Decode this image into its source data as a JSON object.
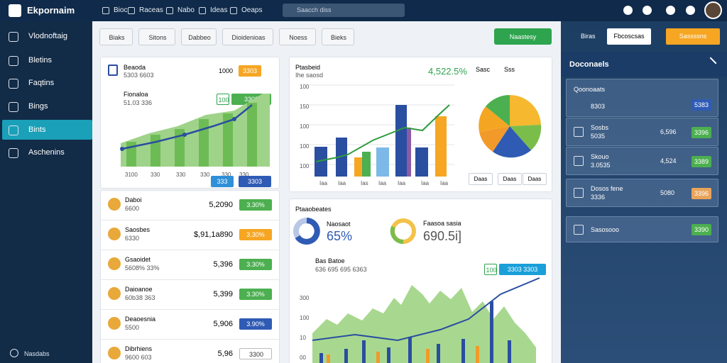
{
  "topbar": {
    "logo": "Ekpornaim",
    "nav": [
      "Bioc",
      "Raceas",
      "Nabo",
      "Ideas",
      "Oeaps"
    ],
    "search": "Saacch diss"
  },
  "sidebar": {
    "items": [
      "Vlodnoftaig",
      "Bletins",
      "Faqtins",
      "Bings",
      "Bints",
      "Aschenins"
    ],
    "footer": "Nasdabs"
  },
  "filters": {
    "buttons": [
      "Biaks",
      "Sitons",
      "Dabbeo",
      "Dioidenioas",
      "Noess",
      "Bieks"
    ],
    "action": "Naastesy"
  },
  "summary_card": {
    "title": "Beaoda",
    "subtitle": "5303 6603",
    "value": "1000",
    "badge": "3303",
    "chart_title": "Fionaloa",
    "chart_subtitle": "51.03 336",
    "chart_badges": [
      "100",
      "3303"
    ],
    "x_labels": [
      "3100",
      "330",
      "330",
      "330",
      "330",
      "330"
    ],
    "footer_badges": [
      "333",
      "3303"
    ]
  },
  "list": {
    "rows": [
      {
        "title": "Daboi",
        "sub": "6600",
        "value": "5,2090",
        "badge": "3.30%"
      },
      {
        "title": "Saosbes",
        "sub": "6330",
        "value": "$,91,1a890",
        "badge": "3.30%"
      },
      {
        "title": "Gsaoidet",
        "sub": "5608% 33%",
        "value": "5,396",
        "badge": "3.30%"
      },
      {
        "title": "Daioanoe",
        "sub": "60b38 363",
        "value": "5,399",
        "badge": "3.30%"
      },
      {
        "title": "Deaoesnia",
        "sub": "5500",
        "value": "5,906",
        "badge": "3.90%"
      },
      {
        "title": "Dibrhiens",
        "sub": "9600 603",
        "value": "5,96",
        "badge": "3300"
      }
    ]
  },
  "chart_card": {
    "title": "Ptasbeid",
    "subtitle": "Ihe saosd",
    "value": "4,522.5%",
    "legend": [
      "Sasc",
      "Sss"
    ],
    "y_labels": [
      "100",
      "150",
      "100",
      "100",
      "100"
    ],
    "x_labels": [
      "Iaa",
      "Iaa",
      "Ias",
      "Iaa",
      "Iaa",
      "Iaa",
      "Iaa"
    ],
    "buttons": [
      "Daas",
      "Daas",
      "Daas"
    ]
  },
  "bottom_card": {
    "title": "Ptaaobeates",
    "kpi1_label": "Naosaot",
    "kpi1_value": "65%",
    "kpi2_label": "Faasoa sasia",
    "kpi2_value": "690.5i]",
    "series_title": "Bas Batoe",
    "series_sub": "636 695 695 6363",
    "badges": [
      "100",
      "3303 3303"
    ],
    "y_labels": [
      "300",
      "100",
      "10",
      "00"
    ]
  },
  "right_panel": {
    "tab": "Biras",
    "button": "Fbcoscsas",
    "action": "Sassssns",
    "header": "Doconaels",
    "accordion": "Qoonoaats",
    "accordion_item": "8303",
    "accordion_badge": "5383",
    "rows": [
      {
        "title": "Sosbs",
        "sub": "5035",
        "value": "6,596",
        "badge": "3396"
      },
      {
        "title": "Skouo",
        "sub": "3.0535",
        "value": "4,524",
        "badge": "3389"
      },
      {
        "title": "Dosos fene",
        "sub": "3336",
        "value": "5080",
        "badge": "3396"
      }
    ],
    "last": "Sasosooo",
    "last_badge": "3390"
  }
}
